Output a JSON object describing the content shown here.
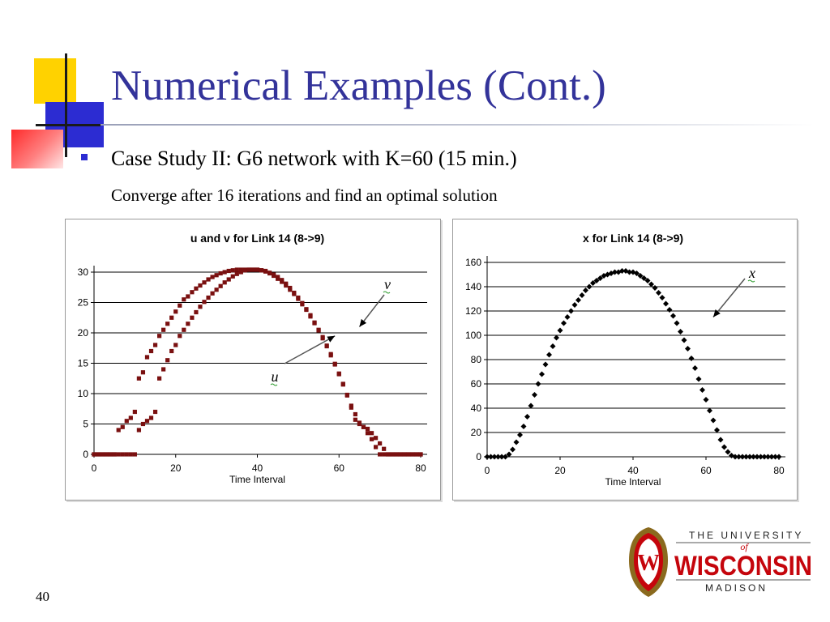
{
  "slide": {
    "title": "Numerical Examples (Cont.)",
    "bullet": "Case Study II: G6 network with K=60 (15 min.)",
    "subtext": "Converge after 16 iterations and find an optimal solution",
    "page_number": "40"
  },
  "colors": {
    "title": "#33339a",
    "bullet": "#2c2cd2",
    "series_uv": "#7a1010",
    "series_x": "#000000",
    "uw_red": "#c5050c"
  },
  "logo": {
    "line1": "THE UNIVERSITY",
    "line_of": "of",
    "line2": "WISCONSIN",
    "line3": "MADISON",
    "crest_letter": "W"
  },
  "chart_data": [
    {
      "type": "scatter",
      "title": "u and v for Link 14 (8->9)",
      "xlabel": "Time Interval",
      "ylabel": "",
      "xlim": [
        0,
        80
      ],
      "ylim": [
        0,
        30
      ],
      "xticks": [
        0,
        20,
        40,
        60,
        80
      ],
      "yticks": [
        0,
        5,
        10,
        15,
        20,
        25,
        30
      ],
      "grid": "horizontal",
      "marker": "square",
      "annotations": [
        {
          "label": "v",
          "target_x": 65,
          "target_y": 21
        },
        {
          "label": "u",
          "target_x": 59,
          "target_y": 19.5
        }
      ],
      "series": [
        {
          "name": "v",
          "x": [
            0,
            1,
            2,
            3,
            4,
            5,
            6,
            7,
            8,
            9,
            10,
            11,
            12,
            13,
            14,
            15,
            16,
            17,
            18,
            19,
            20,
            21,
            22,
            23,
            24,
            25,
            26,
            27,
            28,
            29,
            30,
            31,
            32,
            33,
            34,
            35,
            36,
            37,
            38,
            39,
            40,
            41,
            42,
            43,
            44,
            45,
            46,
            47,
            48,
            49,
            50,
            51,
            52,
            53,
            54,
            55,
            56,
            57,
            58,
            59,
            60,
            61,
            62,
            63,
            64,
            65,
            66,
            67,
            68,
            69,
            70,
            71,
            72,
            73,
            74,
            75,
            76,
            77,
            78,
            79,
            80
          ],
          "y": [
            0,
            0,
            0,
            0,
            0,
            0,
            4,
            4.5,
            5.5,
            6,
            7,
            12.5,
            13.5,
            16,
            17,
            18,
            19.5,
            20.5,
            21.5,
            22.5,
            23.5,
            24.5,
            25.5,
            26,
            26.7,
            27.3,
            27.8,
            28.3,
            28.8,
            29.2,
            29.5,
            29.8,
            30,
            30.2,
            30.3,
            30.4,
            30.4,
            30.4,
            30.4,
            30.4,
            30.4,
            30.3,
            30.1,
            29.8,
            29.4,
            28.9,
            28.4,
            27.8,
            27.1,
            26.4,
            25.6,
            24.7,
            23.8,
            22.7,
            21.6,
            20.4,
            19.1,
            17.8,
            16.3,
            14.8,
            13.2,
            11.5,
            9.7,
            7.7,
            5.7,
            5,
            4.5,
            3.5,
            2.5,
            1.2,
            0,
            0,
            0,
            0,
            0,
            0,
            0,
            0,
            0,
            0,
            0
          ]
        },
        {
          "name": "u",
          "x": [
            0,
            1,
            2,
            3,
            4,
            5,
            6,
            7,
            8,
            9,
            10,
            11,
            12,
            13,
            14,
            15,
            16,
            17,
            18,
            19,
            20,
            21,
            22,
            23,
            24,
            25,
            26,
            27,
            28,
            29,
            30,
            31,
            32,
            33,
            34,
            35,
            36,
            37,
            38,
            39,
            40,
            41,
            42,
            43,
            44,
            45,
            46,
            47,
            48,
            49,
            50,
            51,
            52,
            53,
            54,
            55,
            56,
            57,
            58,
            59,
            60,
            61,
            62,
            63,
            64,
            65,
            66,
            67,
            68,
            69,
            70,
            71,
            72,
            73,
            74,
            75,
            76,
            77,
            78,
            79,
            80
          ],
          "y": [
            0,
            0,
            0,
            0,
            0,
            0,
            0,
            0,
            0,
            0,
            0,
            4,
            5,
            5.5,
            6,
            7,
            12.5,
            14,
            15.5,
            17,
            18,
            19.5,
            20.5,
            21.5,
            22.5,
            23.4,
            24.3,
            25.1,
            25.8,
            26.5,
            27.1,
            27.7,
            28.3,
            28.8,
            29.3,
            29.7,
            30,
            30.3,
            30.4,
            30.4,
            30.4,
            30.3,
            30.2,
            29.9,
            29.6,
            29.2,
            28.7,
            28.1,
            27.4,
            26.6,
            25.8,
            24.9,
            23.9,
            22.9,
            21.7,
            20.5,
            19.3,
            17.9,
            16.5,
            14.9,
            13.3,
            11.6,
            9.8,
            8,
            6.6,
            5.2,
            4.5,
            4.2,
            3.5,
            2.7,
            1.8,
            0.9,
            0,
            0,
            0,
            0,
            0,
            0,
            0,
            0,
            0
          ]
        }
      ]
    },
    {
      "type": "scatter",
      "title": "x for Link 14 (8->9)",
      "xlabel": "Time Interval",
      "ylabel": "",
      "xlim": [
        0,
        80
      ],
      "ylim": [
        0,
        160
      ],
      "xticks": [
        0,
        20,
        40,
        60,
        80
      ],
      "yticks": [
        0,
        20,
        40,
        60,
        80,
        100,
        120,
        140,
        160
      ],
      "grid": "horizontal",
      "marker": "diamond",
      "annotations": [
        {
          "label": "x",
          "target_x": 62,
          "target_y": 115
        }
      ],
      "series": [
        {
          "name": "x",
          "x": [
            0,
            1,
            2,
            3,
            4,
            5,
            6,
            7,
            8,
            9,
            10,
            11,
            12,
            13,
            14,
            15,
            16,
            17,
            18,
            19,
            20,
            21,
            22,
            23,
            24,
            25,
            26,
            27,
            28,
            29,
            30,
            31,
            32,
            33,
            34,
            35,
            36,
            37,
            38,
            39,
            40,
            41,
            42,
            43,
            44,
            45,
            46,
            47,
            48,
            49,
            50,
            51,
            52,
            53,
            54,
            55,
            56,
            57,
            58,
            59,
            60,
            61,
            62,
            63,
            64,
            65,
            66,
            67,
            68,
            69,
            70,
            71,
            72,
            73,
            74,
            75,
            76,
            77,
            78,
            79,
            80
          ],
          "y": [
            0,
            0,
            0,
            0,
            0,
            0,
            2,
            6,
            12,
            18,
            25,
            33,
            42,
            51,
            60,
            68,
            76,
            84,
            91,
            98,
            104,
            110,
            115,
            120,
            125,
            129,
            133,
            137,
            140,
            143,
            145,
            147,
            149,
            150,
            151,
            152,
            152,
            153,
            153,
            152,
            152,
            151,
            149,
            147,
            145,
            142,
            139,
            135,
            131,
            126,
            121,
            116,
            110,
            103,
            96,
            89,
            81,
            73,
            64,
            55,
            47,
            38,
            30,
            22,
            14,
            8,
            4,
            1,
            0,
            0,
            0,
            0,
            0,
            0,
            0,
            0,
            0,
            0,
            0,
            0,
            0
          ]
        }
      ]
    }
  ]
}
